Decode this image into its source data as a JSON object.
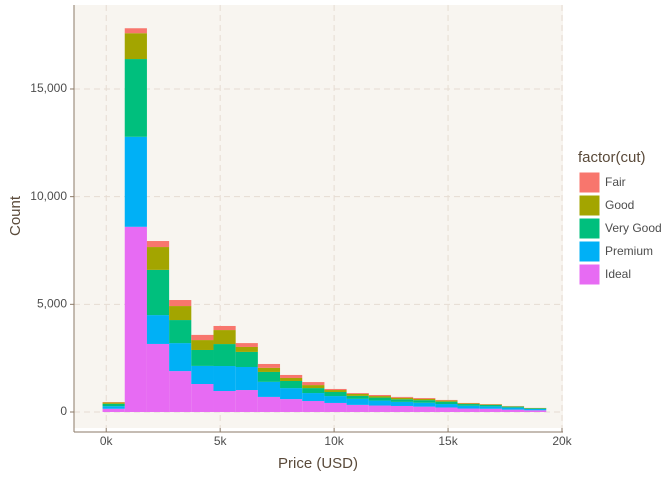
{
  "chart_data": {
    "type": "histogram",
    "x_label": "Price (USD)",
    "y_label": "Count",
    "legend_title": "factor(cut)",
    "bins": [
      -160.75,
      812.75,
      1786.25,
      2759.75,
      3733.25,
      4706.75,
      5680.25,
      6653.75,
      7627.25,
      8600.75,
      9574.25,
      10547.75,
      11521.25,
      12494.75,
      13468.25,
      14441.75,
      15415.25,
      16388.75,
      17362.25,
      18335.75,
      19309.25
    ],
    "series": [
      {
        "name": "Fair",
        "color": "#f8766d",
        "values": [
          20,
          230,
          280,
          280,
          240,
          190,
          180,
          180,
          140,
          140,
          50,
          40,
          50,
          40,
          40,
          30,
          20,
          15,
          10,
          5
        ]
      },
      {
        "name": "Good",
        "color": "#a3a500",
        "values": [
          60,
          1200,
          1060,
          650,
          460,
          650,
          230,
          190,
          140,
          140,
          90,
          90,
          70,
          70,
          60,
          50,
          30,
          25,
          20,
          15
        ]
      },
      {
        "name": "Very Good",
        "color": "#00bf7d",
        "values": [
          110,
          3610,
          2100,
          1070,
          740,
          1020,
          700,
          460,
          330,
          230,
          190,
          140,
          140,
          120,
          120,
          110,
          80,
          70,
          50,
          30
        ]
      },
      {
        "name": "Premium",
        "color": "#00b0f6",
        "values": [
          120,
          4180,
          1340,
          1300,
          840,
          1160,
          1070,
          700,
          510,
          370,
          320,
          280,
          230,
          190,
          180,
          160,
          130,
          110,
          90,
          60
        ]
      },
      {
        "name": "Ideal",
        "color": "#e76bf3",
        "values": [
          150,
          8600,
          3160,
          1900,
          1300,
          975,
          1020,
          700,
          600,
          510,
          420,
          330,
          300,
          280,
          250,
          210,
          160,
          150,
          110,
          80
        ]
      }
    ],
    "xlim": [
      -1414,
      20044
    ],
    "ylim": [
      -743,
      18900
    ],
    "xticks": [
      {
        "value": 0,
        "label": "0k"
      },
      {
        "value": 5000,
        "label": "5k"
      },
      {
        "value": 10000,
        "label": "10k"
      },
      {
        "value": 15000,
        "label": "15k"
      },
      {
        "value": 20000,
        "label": "20k"
      }
    ],
    "yticks": [
      0,
      {
        "value": 5000,
        "label": "5,000"
      },
      {
        "value": 10000,
        "label": "10,000"
      },
      {
        "value": 15000,
        "label": "15,000"
      }
    ],
    "grid": true
  }
}
